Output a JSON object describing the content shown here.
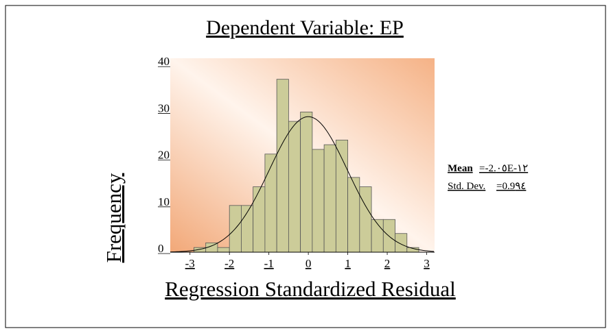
{
  "chart_data": {
    "type": "histogram",
    "title": "Dependent Variable: EP",
    "x_label": "Regression Standardized Residual",
    "y_label": "Frequency",
    "bins": [
      -2.9,
      -2.6,
      -2.3,
      -2.0,
      -1.7,
      -1.4,
      -1.1,
      -0.8,
      -0.5,
      -0.2,
      0.1,
      0.4,
      0.7,
      1.0,
      1.3,
      1.6,
      1.9,
      2.2,
      2.5,
      2.8
    ],
    "values": [
      1,
      2,
      1,
      10,
      10,
      14,
      21,
      37,
      28,
      30,
      22,
      23,
      24,
      16,
      14,
      7,
      7,
      4,
      1
    ],
    "color": "#cccc99",
    "xlim": [
      -3.5,
      3.2
    ],
    "ylim": [
      0,
      41.5
    ],
    "xticks": [
      -3,
      -2,
      -1,
      0,
      1,
      2,
      3
    ],
    "yticks": [
      0,
      10,
      20,
      30,
      40
    ],
    "normal_curve": {
      "mean": 0,
      "sd": 0.99,
      "peak": 29
    },
    "stats": {
      "mean_label": "Mean",
      "mean_value": "=-2.٠٥E-١٢",
      "sd_label": "Std. Dev.",
      "sd_value": "=0.9٩٤"
    }
  }
}
